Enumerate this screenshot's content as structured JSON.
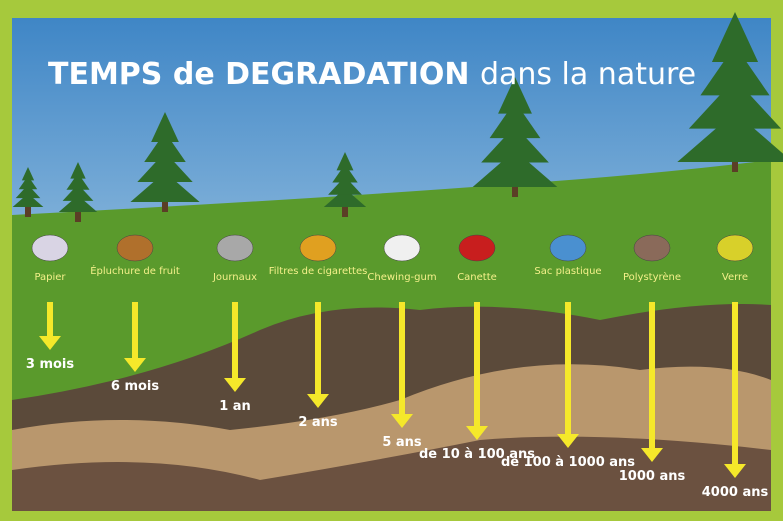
{
  "title": {
    "bold": "TEMPS de DEGRADATION",
    "light": "dans la nature"
  },
  "items": [
    {
      "label": "Papier",
      "duration": "3 mois"
    },
    {
      "label": "Épluchure de fruit",
      "duration": "6 mois"
    },
    {
      "label": "Journaux",
      "duration": "1 an"
    },
    {
      "label": "Filtres de cigarettes",
      "duration": "2 ans"
    },
    {
      "label": "Chewing-gum",
      "duration": "5 ans"
    },
    {
      "label": "Canette",
      "duration": "de 10 à 100 ans"
    },
    {
      "label": "Sac plastique",
      "duration": "de 100 à 1000 ans"
    },
    {
      "label": "Polystyrène",
      "duration": "1000 ans"
    },
    {
      "label": "Verre",
      "duration": "4000 ans"
    }
  ]
}
